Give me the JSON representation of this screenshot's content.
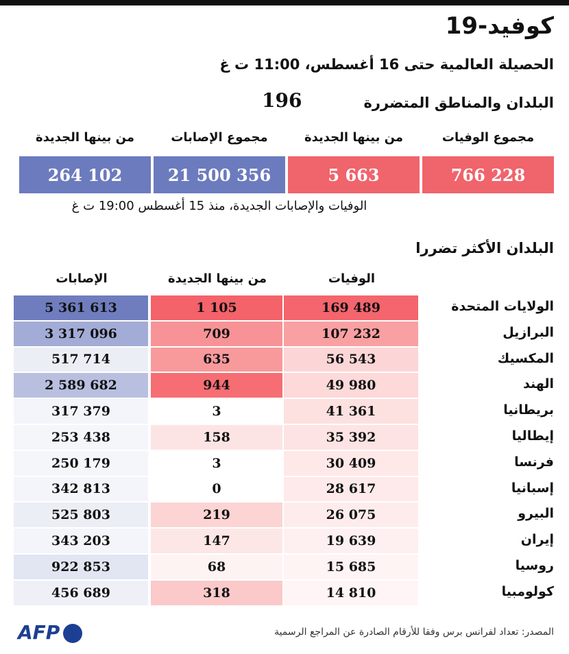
{
  "header": {
    "title": "كوفيد-19",
    "subtitle": "الحصيلة العالمية حتى 16 أغسطس، 11:00 ت غ"
  },
  "summary": {
    "label": "البلدان والمناطق المتضررة",
    "count": "196",
    "columns": [
      {
        "label": "مجموع الوفيات",
        "value": "766 228",
        "color": "#f0646c"
      },
      {
        "label": "من بينها الجديدة",
        "value": "5 663",
        "color": "#f0646c"
      },
      {
        "label": "مجموع الإصابات",
        "value": "21 500 356",
        "color": "#6c7bbe"
      },
      {
        "label": "من بينها الجديدة",
        "value": "264 102",
        "color": "#6c7bbe"
      }
    ],
    "note": "الوفيات والإصابات الجديدة، منذ 15 أغسطس 19:00 ت غ"
  },
  "table": {
    "title": "البلدان الأكثر تضررا",
    "headers": [
      "الوفيات",
      "من بينها الجديدة",
      "الإصابات"
    ],
    "rows": [
      {
        "country": "الولايات المتحدة",
        "cells": [
          {
            "text": "169 489",
            "color": "#f4656d"
          },
          {
            "text": "1 105",
            "color": "#f4626a"
          },
          {
            "text": "5 361 613",
            "color": "#6f7dbe"
          }
        ]
      },
      {
        "country": "البرازيل",
        "cells": [
          {
            "text": "107 232",
            "color": "#f9a0a2"
          },
          {
            "text": "709",
            "color": "#f79396"
          },
          {
            "text": "3 317 096",
            "color": "#a3acd6"
          }
        ]
      },
      {
        "country": "المكسيك",
        "cells": [
          {
            "text": "56 543",
            "color": "#fcd6d6"
          },
          {
            "text": "635",
            "color": "#f89a9c"
          },
          {
            "text": "517 714",
            "color": "#eceef6"
          }
        ]
      },
      {
        "country": "الهند",
        "cells": [
          {
            "text": "49 980",
            "color": "#fdd9d9"
          },
          {
            "text": "944",
            "color": "#f66e73"
          },
          {
            "text": "2 589 682",
            "color": "#b9bfdf"
          }
        ]
      },
      {
        "country": "بريطانيا",
        "cells": [
          {
            "text": "41 361",
            "color": "#fde0e0"
          },
          {
            "text": "3",
            "color": "#ffffff"
          },
          {
            "text": "317 379",
            "color": "#f4f5fa"
          }
        ]
      },
      {
        "country": "إيطاليا",
        "cells": [
          {
            "text": "35 392",
            "color": "#fde3e3"
          },
          {
            "text": "158",
            "color": "#fde4e4"
          },
          {
            "text": "253 438",
            "color": "#f5f6fa"
          }
        ]
      },
      {
        "country": "فرنسا",
        "cells": [
          {
            "text": "30 409",
            "color": "#fee8e8"
          },
          {
            "text": "3",
            "color": "#ffffff"
          },
          {
            "text": "250 179",
            "color": "#f5f6fa"
          }
        ]
      },
      {
        "country": "إسبانيا",
        "cells": [
          {
            "text": "28 617",
            "color": "#feeaea"
          },
          {
            "text": "0",
            "color": "#ffffff"
          },
          {
            "text": "342 813",
            "color": "#f4f5fa"
          }
        ]
      },
      {
        "country": "البيرو",
        "cells": [
          {
            "text": "26 075",
            "color": "#feecec"
          },
          {
            "text": "219",
            "color": "#fcd4d4"
          },
          {
            "text": "525 803",
            "color": "#eceef6"
          }
        ]
      },
      {
        "country": "إيران",
        "cells": [
          {
            "text": "19 639",
            "color": "#fef0f0"
          },
          {
            "text": "147",
            "color": "#fde6e6"
          },
          {
            "text": "343 203",
            "color": "#f4f5fa"
          }
        ]
      },
      {
        "country": "روسيا",
        "cells": [
          {
            "text": "15 685",
            "color": "#fff4f4"
          },
          {
            "text": "68",
            "color": "#fef3f3"
          },
          {
            "text": "922 853",
            "color": "#e2e5f2"
          }
        ]
      },
      {
        "country": "كولومبيا",
        "cells": [
          {
            "text": "14 810",
            "color": "#fff5f5"
          },
          {
            "text": "318",
            "color": "#fbc9c9"
          },
          {
            "text": "456 689",
            "color": "#eff0f7"
          }
        ]
      }
    ]
  },
  "footer": {
    "logo": "AFP",
    "source": "المصدر: تعداد لفرانس برس وفقا للأرقام الصادرة عن المراجع الرسمية"
  }
}
